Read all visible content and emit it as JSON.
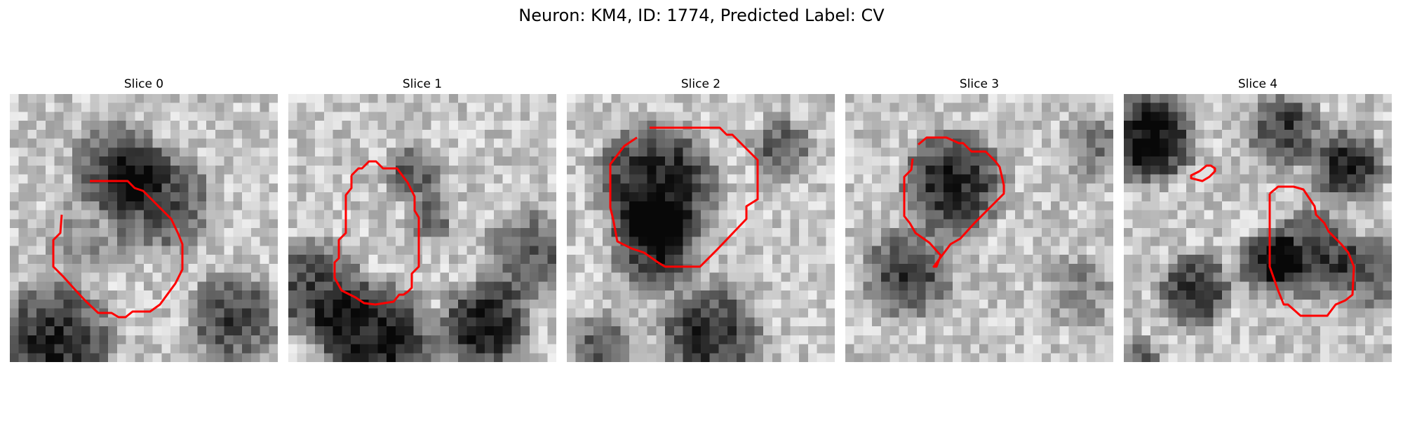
{
  "figure": {
    "title": "Neuron: KM4, ID: 1774, Predicted Label: CV"
  },
  "panels": [
    {
      "title": "Slice 0",
      "contour_color": "#ff0000"
    },
    {
      "title": "Slice 1",
      "contour_color": "#ff0000"
    },
    {
      "title": "Slice 2",
      "contour_color": "#ff0000"
    },
    {
      "title": "Slice 3",
      "contour_color": "#ff0000"
    },
    {
      "title": "Slice 4",
      "contour_color": "#ff0000"
    }
  ],
  "image": {
    "colormap": "gray",
    "grid": "30x30 pixels"
  }
}
